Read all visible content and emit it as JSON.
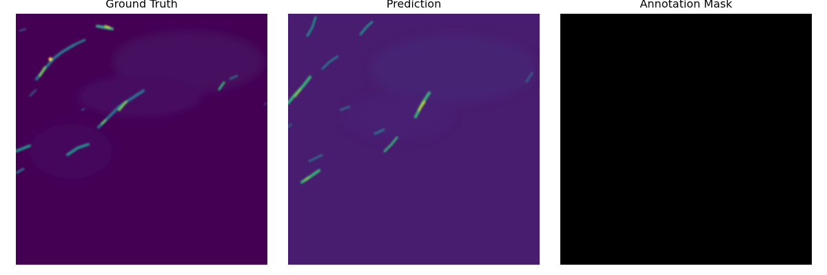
{
  "figure": {
    "panels": [
      {
        "title": "Ground Truth",
        "background_color": "#440154",
        "colormap": "viridis"
      },
      {
        "title": "Prediction",
        "background_color": "#481c6e",
        "colormap": "viridis"
      },
      {
        "title": "Annotation Mask",
        "background_color": "#000000",
        "colormap": "gray"
      }
    ]
  }
}
